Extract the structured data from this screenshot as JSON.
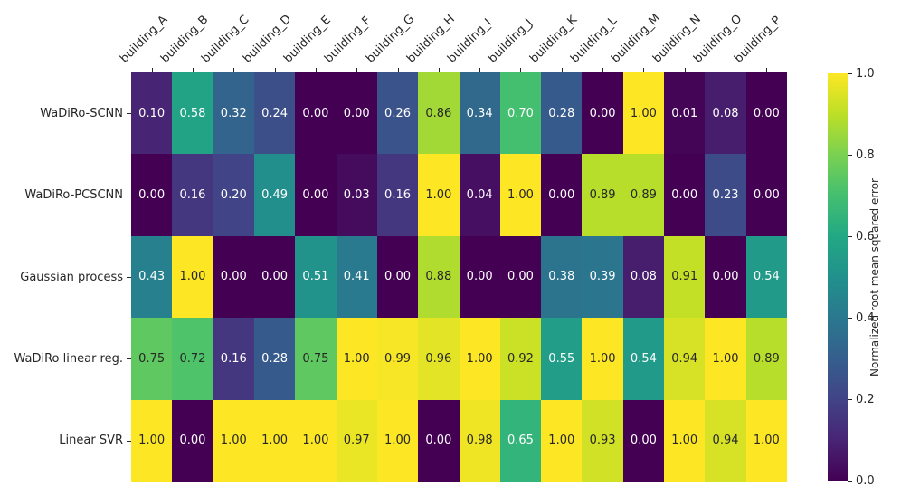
{
  "chart_data": {
    "type": "heatmap",
    "title": "",
    "xlabel": "",
    "ylabel": "",
    "columns": [
      "building_A",
      "building_B",
      "building_C",
      "building_D",
      "building_E",
      "building_F",
      "building_G",
      "building_H",
      "building_I",
      "building_J",
      "building_K",
      "building_L",
      "building_M",
      "building_N",
      "building_O",
      "building_P"
    ],
    "rows": [
      "WaDiRo-SCNN",
      "WaDiRo-PCSCNN",
      "Gaussian process",
      "WaDiRo linear reg.",
      "Linear SVR"
    ],
    "values": [
      [
        0.1,
        0.58,
        0.32,
        0.24,
        0.0,
        0.0,
        0.26,
        0.86,
        0.34,
        0.7,
        0.28,
        0.0,
        1.0,
        0.01,
        0.08,
        0.0
      ],
      [
        0.0,
        0.16,
        0.2,
        0.49,
        0.0,
        0.03,
        0.16,
        1.0,
        0.04,
        1.0,
        0.0,
        0.89,
        0.89,
        0.0,
        0.23,
        0.0
      ],
      [
        0.43,
        1.0,
        0.0,
        0.0,
        0.51,
        0.41,
        0.0,
        0.88,
        0.0,
        0.0,
        0.38,
        0.39,
        0.08,
        0.91,
        0.0,
        0.54
      ],
      [
        0.75,
        0.72,
        0.16,
        0.28,
        0.75,
        1.0,
        0.99,
        0.96,
        1.0,
        0.92,
        0.55,
        1.0,
        0.54,
        0.94,
        1.0,
        0.89
      ],
      [
        1.0,
        0.0,
        1.0,
        1.0,
        1.0,
        0.97,
        1.0,
        0.0,
        0.98,
        0.65,
        1.0,
        0.93,
        0.0,
        1.0,
        0.94,
        1.0
      ]
    ],
    "vmin": 0.0,
    "vmax": 1.0,
    "value_decimals": 2,
    "colormap": "viridis",
    "grid": false,
    "colorbar": {
      "label": "Normalized root mean squared error",
      "ticks": [
        1.0,
        0.8,
        0.6,
        0.4,
        0.2,
        0.0
      ],
      "tick_decimals": 1
    }
  },
  "colors": {
    "viridis_stops": [
      "#440154",
      "#482475",
      "#414487",
      "#355f8d",
      "#2a788e",
      "#21918c",
      "#22a884",
      "#44bf70",
      "#7ad151",
      "#bddf26",
      "#fde725"
    ],
    "annotation_light": "#ffffff",
    "annotation_dark": "#262626",
    "tick_color": "#262626",
    "background": "#ffffff"
  }
}
